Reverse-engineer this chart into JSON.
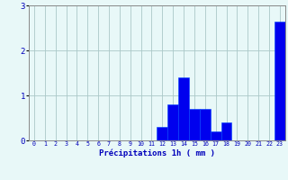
{
  "hours": [
    0,
    1,
    2,
    3,
    4,
    5,
    6,
    7,
    8,
    9,
    10,
    11,
    12,
    13,
    14,
    15,
    16,
    17,
    18,
    19,
    20,
    21,
    22,
    23
  ],
  "values": [
    0,
    0,
    0,
    0,
    0,
    0,
    0,
    0,
    0,
    0,
    0,
    0,
    0.3,
    0.8,
    1.4,
    0.7,
    0.7,
    0.2,
    0.4,
    0,
    0,
    0,
    0,
    2.65
  ],
  "bar_color": "#0000ee",
  "bar_edge_color": "#0044ff",
  "background_color": "#e8f8f8",
  "grid_color": "#aac8c8",
  "xlabel": "Précipitations 1h ( mm )",
  "xlabel_color": "#0000bb",
  "tick_color": "#0000bb",
  "ylim": [
    0,
    3
  ],
  "yticks": [
    0,
    1,
    2,
    3
  ],
  "xlim": [
    -0.5,
    23.5
  ],
  "figsize": [
    3.2,
    2.0
  ],
  "dpi": 100
}
